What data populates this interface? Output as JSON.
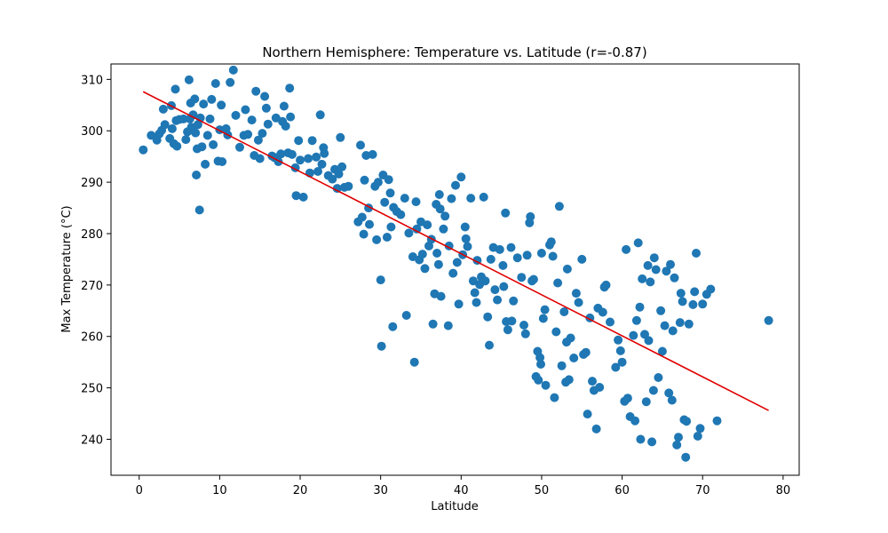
{
  "chart_data": {
    "type": "scatter",
    "title": "Northern Hemisphere: Temperature vs. Latitude (r=-0.87)",
    "xlabel": "Latitude",
    "ylabel": "Max Temperature (°C)",
    "xlim": [
      -3.5,
      82
    ],
    "ylim": [
      233,
      313
    ],
    "xticks": [
      0,
      10,
      20,
      30,
      40,
      50,
      60,
      70,
      80
    ],
    "yticks": [
      240,
      250,
      260,
      270,
      280,
      290,
      300,
      310
    ],
    "grid": false,
    "colors": {
      "points": "#1f77b4",
      "regression": "#e00000"
    },
    "regression": {
      "x": [
        0.5,
        78.2
      ],
      "y": [
        307.6,
        245.6
      ]
    },
    "points": [
      [
        0.5,
        296.3
      ],
      [
        1.5,
        299.1
      ],
      [
        2.2,
        298.2
      ],
      [
        2.5,
        299.4
      ],
      [
        2.8,
        300.1
      ],
      [
        3.0,
        304.2
      ],
      [
        3.2,
        301.2
      ],
      [
        3.8,
        298.5
      ],
      [
        4.0,
        304.9
      ],
      [
        4.1,
        300.4
      ],
      [
        4.3,
        297.5
      ],
      [
        4.5,
        308.1
      ],
      [
        4.6,
        302.0
      ],
      [
        4.7,
        297.0
      ],
      [
        5.0,
        302.2
      ],
      [
        5.5,
        302.3
      ],
      [
        5.8,
        298.3
      ],
      [
        6.0,
        299.8
      ],
      [
        6.2,
        309.9
      ],
      [
        6.3,
        302.3
      ],
      [
        6.4,
        305.4
      ],
      [
        6.5,
        300.7
      ],
      [
        6.7,
        303.1
      ],
      [
        6.9,
        306.2
      ],
      [
        7.0,
        299.6
      ],
      [
        7.1,
        291.4
      ],
      [
        7.2,
        296.5
      ],
      [
        7.3,
        301.2
      ],
      [
        7.5,
        284.6
      ],
      [
        7.6,
        302.5
      ],
      [
        7.8,
        296.9
      ],
      [
        8.0,
        305.2
      ],
      [
        8.2,
        293.5
      ],
      [
        8.5,
        299.1
      ],
      [
        8.8,
        302.3
      ],
      [
        9.0,
        306.1
      ],
      [
        9.2,
        297.3
      ],
      [
        9.5,
        309.2
      ],
      [
        9.8,
        294.1
      ],
      [
        10.0,
        300.2
      ],
      [
        10.2,
        305.0
      ],
      [
        10.3,
        294.0
      ],
      [
        10.8,
        300.4
      ],
      [
        11.0,
        299.2
      ],
      [
        11.3,
        309.4
      ],
      [
        11.7,
        311.8
      ],
      [
        12.0,
        303.0
      ],
      [
        12.5,
        296.8
      ],
      [
        13.0,
        299.1
      ],
      [
        13.2,
        304.1
      ],
      [
        13.5,
        299.3
      ],
      [
        14.0,
        302.1
      ],
      [
        14.3,
        295.2
      ],
      [
        14.5,
        307.7
      ],
      [
        14.8,
        298.2
      ],
      [
        15.0,
        294.6
      ],
      [
        15.3,
        299.5
      ],
      [
        15.6,
        306.7
      ],
      [
        15.8,
        304.4
      ],
      [
        16.0,
        301.3
      ],
      [
        16.5,
        295.1
      ],
      [
        16.8,
        294.8
      ],
      [
        17.0,
        302.5
      ],
      [
        17.3,
        294.0
      ],
      [
        17.6,
        295.5
      ],
      [
        17.8,
        301.8
      ],
      [
        18.0,
        304.8
      ],
      [
        18.2,
        300.9
      ],
      [
        18.5,
        295.7
      ],
      [
        18.7,
        308.3
      ],
      [
        18.8,
        302.7
      ],
      [
        19.0,
        295.4
      ],
      [
        19.4,
        292.8
      ],
      [
        19.5,
        287.4
      ],
      [
        19.8,
        298.1
      ],
      [
        20.0,
        294.3
      ],
      [
        20.4,
        287.1
      ],
      [
        21.0,
        294.6
      ],
      [
        21.2,
        291.8
      ],
      [
        21.5,
        298.1
      ],
      [
        22.0,
        294.9
      ],
      [
        22.2,
        292.1
      ],
      [
        22.5,
        303.1
      ],
      [
        22.7,
        293.5
      ],
      [
        22.9,
        296.7
      ],
      [
        23.0,
        295.6
      ],
      [
        23.5,
        291.3
      ],
      [
        24.0,
        290.6
      ],
      [
        24.3,
        292.5
      ],
      [
        24.6,
        288.8
      ],
      [
        24.8,
        291.6
      ],
      [
        25.0,
        298.7
      ],
      [
        25.2,
        293.0
      ],
      [
        25.5,
        289.0
      ],
      [
        26.0,
        289.2
      ],
      [
        27.2,
        282.3
      ],
      [
        27.5,
        297.2
      ],
      [
        27.7,
        283.2
      ],
      [
        27.9,
        279.9
      ],
      [
        28.0,
        290.4
      ],
      [
        28.2,
        295.2
      ],
      [
        28.5,
        285.0
      ],
      [
        28.6,
        281.8
      ],
      [
        29.0,
        295.4
      ],
      [
        29.3,
        289.2
      ],
      [
        29.5,
        278.8
      ],
      [
        29.7,
        290.0
      ],
      [
        30.0,
        271.0
      ],
      [
        30.1,
        258.1
      ],
      [
        30.3,
        291.4
      ],
      [
        30.5,
        286.1
      ],
      [
        30.8,
        279.3
      ],
      [
        31.0,
        290.5
      ],
      [
        31.2,
        287.9
      ],
      [
        31.3,
        281.3
      ],
      [
        31.5,
        261.9
      ],
      [
        31.6,
        285.1
      ],
      [
        32.0,
        284.3
      ],
      [
        32.5,
        283.7
      ],
      [
        33.0,
        286.9
      ],
      [
        33.2,
        264.1
      ],
      [
        33.5,
        280.1
      ],
      [
        34.0,
        275.5
      ],
      [
        34.2,
        255.0
      ],
      [
        34.4,
        286.2
      ],
      [
        34.5,
        280.9
      ],
      [
        34.8,
        274.9
      ],
      [
        35.0,
        282.3
      ],
      [
        35.2,
        276.0
      ],
      [
        35.5,
        273.2
      ],
      [
        35.8,
        281.7
      ],
      [
        36.0,
        277.6
      ],
      [
        36.3,
        278.9
      ],
      [
        36.5,
        262.4
      ],
      [
        36.7,
        268.3
      ],
      [
        36.9,
        285.7
      ],
      [
        37.0,
        276.2
      ],
      [
        37.2,
        274.0
      ],
      [
        37.3,
        287.6
      ],
      [
        37.4,
        284.8
      ],
      [
        37.5,
        267.8
      ],
      [
        37.8,
        280.9
      ],
      [
        38.0,
        283.4
      ],
      [
        38.4,
        262.1
      ],
      [
        38.5,
        277.6
      ],
      [
        38.8,
        286.8
      ],
      [
        39.0,
        272.3
      ],
      [
        39.3,
        289.4
      ],
      [
        39.5,
        274.4
      ],
      [
        39.7,
        266.3
      ],
      [
        40.0,
        291.0
      ],
      [
        40.2,
        275.9
      ],
      [
        40.5,
        281.3
      ],
      [
        40.6,
        279.0
      ],
      [
        40.8,
        277.5
      ],
      [
        41.2,
        286.9
      ],
      [
        41.5,
        270.8
      ],
      [
        41.7,
        268.5
      ],
      [
        41.9,
        266.6
      ],
      [
        42.0,
        274.8
      ],
      [
        42.3,
        270.1
      ],
      [
        42.5,
        271.6
      ],
      [
        42.8,
        287.1
      ],
      [
        43.0,
        270.8
      ],
      [
        43.3,
        263.8
      ],
      [
        43.5,
        258.3
      ],
      [
        43.7,
        275.0
      ],
      [
        44.0,
        277.3
      ],
      [
        44.2,
        269.1
      ],
      [
        44.5,
        267.1
      ],
      [
        44.8,
        276.9
      ],
      [
        45.2,
        273.8
      ],
      [
        45.3,
        269.7
      ],
      [
        45.5,
        284.0
      ],
      [
        45.6,
        262.9
      ],
      [
        45.8,
        261.3
      ],
      [
        46.2,
        277.3
      ],
      [
        46.3,
        263.0
      ],
      [
        46.5,
        266.9
      ],
      [
        47.0,
        275.3
      ],
      [
        47.5,
        271.5
      ],
      [
        47.8,
        262.2
      ],
      [
        48.0,
        260.5
      ],
      [
        48.2,
        275.8
      ],
      [
        48.5,
        282.1
      ],
      [
        48.6,
        283.3
      ],
      [
        48.8,
        270.8
      ],
      [
        49.0,
        271.1
      ],
      [
        49.3,
        252.2
      ],
      [
        49.5,
        257.1
      ],
      [
        49.6,
        251.5
      ],
      [
        49.8,
        255.9
      ],
      [
        49.9,
        254.6
      ],
      [
        50.0,
        276.2
      ],
      [
        50.2,
        263.5
      ],
      [
        50.4,
        265.2
      ],
      [
        50.5,
        250.5
      ],
      [
        51.0,
        277.8
      ],
      [
        51.2,
        278.4
      ],
      [
        51.4,
        275.6
      ],
      [
        51.6,
        248.1
      ],
      [
        51.8,
        260.9
      ],
      [
        52.0,
        270.4
      ],
      [
        52.2,
        285.3
      ],
      [
        52.5,
        254.3
      ],
      [
        52.8,
        264.8
      ],
      [
        53.0,
        251.1
      ],
      [
        53.1,
        258.9
      ],
      [
        53.2,
        273.1
      ],
      [
        53.4,
        251.6
      ],
      [
        53.6,
        259.7
      ],
      [
        54.0,
        255.8
      ],
      [
        54.3,
        268.4
      ],
      [
        54.6,
        266.6
      ],
      [
        55.0,
        275.0
      ],
      [
        55.2,
        256.5
      ],
      [
        55.5,
        256.9
      ],
      [
        55.7,
        244.9
      ],
      [
        56.0,
        263.6
      ],
      [
        56.3,
        251.3
      ],
      [
        56.5,
        249.5
      ],
      [
        56.8,
        242.0
      ],
      [
        57.0,
        265.5
      ],
      [
        57.2,
        250.1
      ],
      [
        57.6,
        264.7
      ],
      [
        57.8,
        269.6
      ],
      [
        58.0,
        270.0
      ],
      [
        58.5,
        262.8
      ],
      [
        59.2,
        254.0
      ],
      [
        59.5,
        259.3
      ],
      [
        59.8,
        257.2
      ],
      [
        60.0,
        255.0
      ],
      [
        60.3,
        247.4
      ],
      [
        60.5,
        276.9
      ],
      [
        60.7,
        248.0
      ],
      [
        61.0,
        244.4
      ],
      [
        61.4,
        260.2
      ],
      [
        61.6,
        243.6
      ],
      [
        61.8,
        263.1
      ],
      [
        62.0,
        278.2
      ],
      [
        62.2,
        265.7
      ],
      [
        62.3,
        240.0
      ],
      [
        62.5,
        271.2
      ],
      [
        62.8,
        260.4
      ],
      [
        63.0,
        247.3
      ],
      [
        63.2,
        273.8
      ],
      [
        63.3,
        259.2
      ],
      [
        63.5,
        270.6
      ],
      [
        63.7,
        239.5
      ],
      [
        63.9,
        249.5
      ],
      [
        64.0,
        275.3
      ],
      [
        64.2,
        273.0
      ],
      [
        64.5,
        252.0
      ],
      [
        64.8,
        265.0
      ],
      [
        65.0,
        257.1
      ],
      [
        65.3,
        262.1
      ],
      [
        65.5,
        272.7
      ],
      [
        65.8,
        249.0
      ],
      [
        66.0,
        274.0
      ],
      [
        66.2,
        247.6
      ],
      [
        66.3,
        261.1
      ],
      [
        66.5,
        271.4
      ],
      [
        66.8,
        238.9
      ],
      [
        67.0,
        240.4
      ],
      [
        67.2,
        262.7
      ],
      [
        67.3,
        268.4
      ],
      [
        67.5,
        266.8
      ],
      [
        67.7,
        243.8
      ],
      [
        67.9,
        236.5
      ],
      [
        68.0,
        243.5
      ],
      [
        68.3,
        262.4
      ],
      [
        68.8,
        266.2
      ],
      [
        69.0,
        268.7
      ],
      [
        69.2,
        276.2
      ],
      [
        69.4,
        240.6
      ],
      [
        69.7,
        242.1
      ],
      [
        70.0,
        266.3
      ],
      [
        70.5,
        268.2
      ],
      [
        71.0,
        269.2
      ],
      [
        71.8,
        243.6
      ],
      [
        78.2,
        263.1
      ]
    ]
  }
}
